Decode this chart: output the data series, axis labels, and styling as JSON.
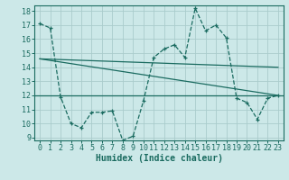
{
  "title": "",
  "xlabel": "Humidex (Indice chaleur)",
  "bg_color": "#cce8e8",
  "grid_color": "#aacccc",
  "line_color": "#1a6b60",
  "xlim": [
    -0.5,
    23.5
  ],
  "ylim": [
    8.8,
    18.4
  ],
  "yticks": [
    9,
    10,
    11,
    12,
    13,
    14,
    15,
    16,
    17,
    18
  ],
  "xticks": [
    0,
    1,
    2,
    3,
    4,
    5,
    6,
    7,
    8,
    9,
    10,
    11,
    12,
    13,
    14,
    15,
    16,
    17,
    18,
    19,
    20,
    21,
    22,
    23
  ],
  "zigzag_x": [
    0,
    1,
    2,
    3,
    4,
    5,
    6,
    7,
    8,
    9,
    10,
    11,
    12,
    13,
    14,
    15,
    16,
    17,
    18,
    19,
    20,
    21,
    22,
    23
  ],
  "zigzag_y": [
    17.1,
    16.8,
    11.9,
    10.0,
    9.7,
    10.8,
    10.8,
    10.9,
    8.8,
    9.1,
    11.6,
    14.7,
    15.3,
    15.6,
    14.7,
    18.2,
    16.6,
    17.0,
    16.1,
    11.8,
    11.5,
    10.3,
    11.8,
    12.0
  ],
  "line2_x": [
    0,
    23
  ],
  "line2_y": [
    14.6,
    14.0
  ],
  "line3_x": [
    0,
    23
  ],
  "line3_y": [
    14.6,
    12.0
  ],
  "hline_y": 12.0,
  "xlabel_fontsize": 7,
  "tick_fontsize": 6
}
